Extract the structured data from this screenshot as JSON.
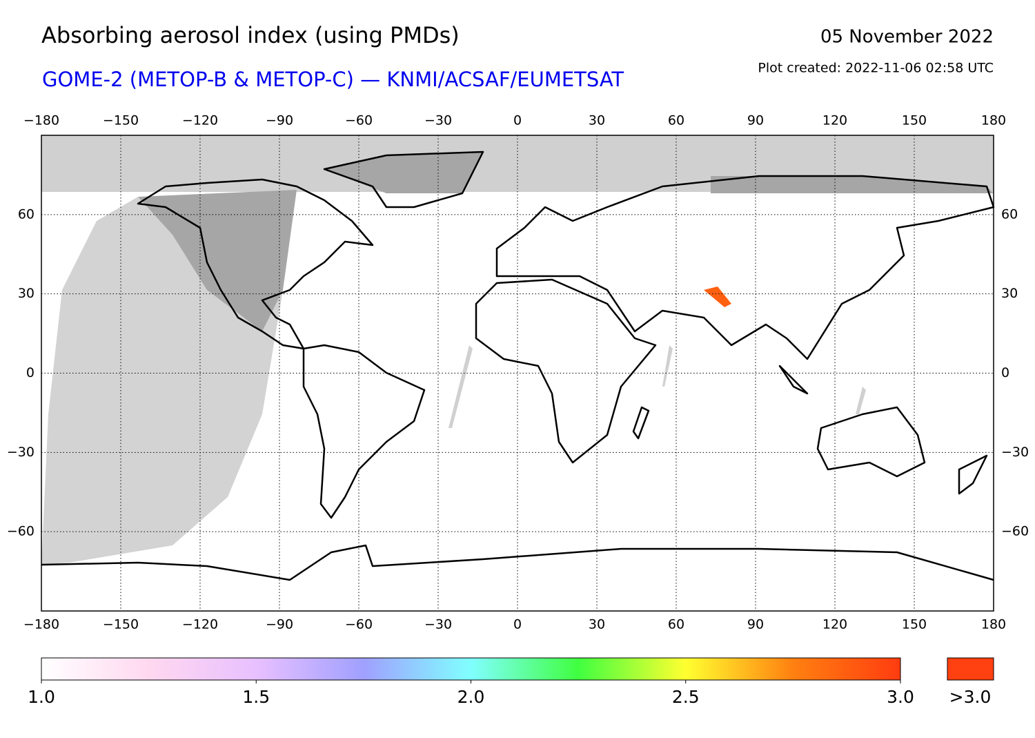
{
  "header": {
    "title": "Absorbing aerosol index (using PMDs)",
    "subtitle": "GOME-2 (METOP-B & METOP-C) — KNMI/ACSAF/EUMETSAT",
    "date": "05 November 2022",
    "plot_created": "Plot created: 2022-11-06 02:58 UTC"
  },
  "map": {
    "xlim": [
      -180,
      180
    ],
    "ylim": [
      -90,
      90
    ],
    "xticks": [
      {
        "value": -180,
        "label": "−180"
      },
      {
        "value": -150,
        "label": "−150"
      },
      {
        "value": -120,
        "label": "−120"
      },
      {
        "value": -90,
        "label": "−90"
      },
      {
        "value": -60,
        "label": "−60"
      },
      {
        "value": -30,
        "label": "−30"
      },
      0,
      30,
      60,
      90,
      120,
      150,
      180
    ],
    "yticks": [
      {
        "value": -60,
        "label": "−60"
      },
      {
        "value": -30,
        "label": "−30"
      },
      0,
      30,
      60
    ]
  },
  "colorbar": {
    "range": [
      1.0,
      3.0
    ],
    "ticks": [
      {
        "value": 1.0,
        "label": "1.0"
      },
      {
        "value": 1.5,
        "label": "1.5"
      },
      {
        "value": 2.0,
        "label": "2.0"
      },
      {
        "value": 2.5,
        "label": "2.5"
      },
      {
        "value": 3.0,
        "label": "3.0"
      }
    ],
    "colors": [
      "#ffffff",
      "#ffd8f0",
      "#e8c0ff",
      "#a0a0ff",
      "#80ffff",
      "#40ff40",
      "#ffff30",
      "#ff8010",
      "#ff3c10"
    ],
    "overflow_label": ">3.0",
    "overflow_color": "#ff4010"
  }
}
